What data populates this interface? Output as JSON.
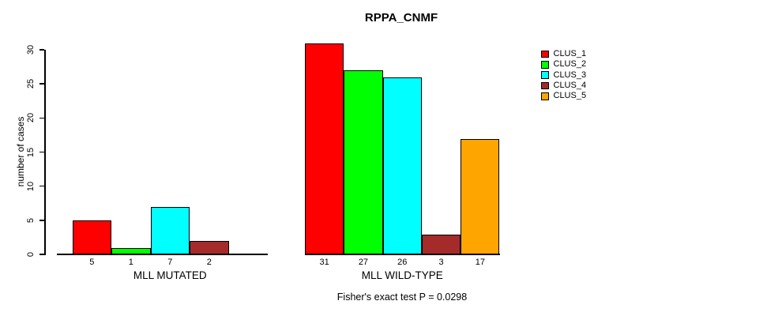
{
  "chart_data": {
    "type": "bar",
    "title": "RPPA_CNMF",
    "ylabel": "number of cases",
    "xlabel": "",
    "ylim": [
      0,
      30
    ],
    "yticks": [
      0,
      5,
      10,
      15,
      20,
      25,
      30
    ],
    "grid": false,
    "legend_position": "right",
    "series": [
      {
        "name": "CLUS_1",
        "color": "#FF0000",
        "values": [
          5,
          31
        ]
      },
      {
        "name": "CLUS_2",
        "color": "#00FF00",
        "values": [
          1,
          27
        ]
      },
      {
        "name": "CLUS_3",
        "color": "#00FFFF",
        "values": [
          7,
          26
        ]
      },
      {
        "name": "CLUS_4",
        "color": "#A52A2A",
        "values": [
          2,
          3
        ]
      },
      {
        "name": "CLUS_5",
        "color": "#FFA500",
        "values": [
          0,
          17
        ]
      }
    ],
    "categories": [
      "MLL MUTATED",
      "MLL WILD-TYPE"
    ],
    "groups": [
      {
        "label": "MLL MUTATED",
        "values": [
          5,
          1,
          7,
          2,
          0
        ],
        "bar_labels": [
          "5",
          "1",
          "7",
          "2",
          ""
        ]
      },
      {
        "label": "MLL WILD-TYPE",
        "values": [
          31,
          27,
          26,
          3,
          17
        ],
        "bar_labels": [
          "31",
          "27",
          "26",
          "3",
          "17"
        ]
      }
    ],
    "colors": [
      "#FF0000",
      "#00FF00",
      "#00FFFF",
      "#A52A2A",
      "#FFA500"
    ],
    "legend_entries": [
      "CLUS_1",
      "CLUS_2",
      "CLUS_3",
      "CLUS_4",
      "CLUS_5"
    ],
    "caption": "Fisher's exact test P = 0.0298"
  }
}
